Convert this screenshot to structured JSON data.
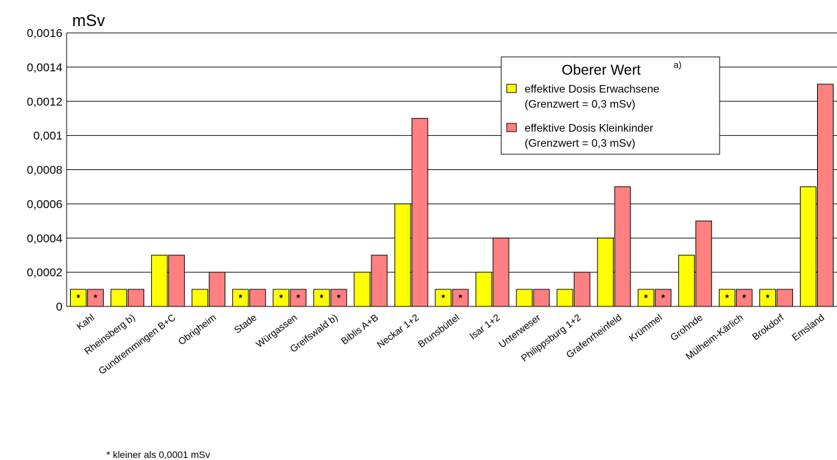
{
  "chart_data": {
    "type": "bar",
    "ylabel": "mSv",
    "ylim": [
      0,
      0.0016
    ],
    "yticks": [
      "0",
      "0,0002",
      "0,0004",
      "0,0006",
      "0,0008",
      "0,001",
      "0,0012",
      "0,0014",
      "0,0016"
    ],
    "grid": true,
    "legend_position": "top-right",
    "legend_title": "Oberer Wert",
    "legend_title_note": "a)",
    "star_label": "*",
    "footnote": "* kleiner als 0,0001 mSv",
    "categories": [
      "Kahl",
      "Rheinsberg b)",
      "Gundremmingen B+C",
      "Obrigheim",
      "Stade",
      "Würgassen",
      "Greifswald b)",
      "Biblis A+B",
      "Neckar 1+2",
      "Brunsbüttel",
      "Isar 1+2",
      "Unterweser",
      "Philippsburg 1+2",
      "Grafenrheinfeld",
      "Krümmel",
      "Grohnde",
      "Mülheim-Kärlich",
      "Brokdorf",
      "Emsland"
    ],
    "series": [
      {
        "name": "effektive Dosis Erwachsene",
        "name_line2": "(Grenzwert = 0,3 mSv)",
        "color": "#ffff00",
        "values": [
          0.0001,
          0.0001,
          0.0003,
          0.0001,
          0.0001,
          0.0001,
          0.0001,
          0.0002,
          0.0006,
          0.0001,
          0.0002,
          0.0001,
          0.0001,
          0.0004,
          0.0001,
          0.0003,
          0.0001,
          0.0001,
          0.0007
        ],
        "less_than": [
          true,
          false,
          false,
          false,
          true,
          true,
          true,
          false,
          false,
          true,
          false,
          false,
          false,
          false,
          true,
          false,
          true,
          true,
          false
        ]
      },
      {
        "name": "effektive Dosis Kleinkinder",
        "name_line2": "(Grenzwert = 0,3 mSv)",
        "color": "#ff8080",
        "values": [
          0.0001,
          0.0001,
          0.0003,
          0.0002,
          0.0001,
          0.0001,
          0.0001,
          0.0003,
          0.0011,
          0.0001,
          0.0004,
          0.0001,
          0.0002,
          0.0007,
          0.0001,
          0.0005,
          0.0001,
          0.0001,
          0.0013
        ],
        "less_than": [
          true,
          false,
          false,
          false,
          false,
          true,
          true,
          false,
          false,
          true,
          false,
          false,
          false,
          false,
          true,
          false,
          true,
          false,
          false
        ]
      }
    ]
  }
}
